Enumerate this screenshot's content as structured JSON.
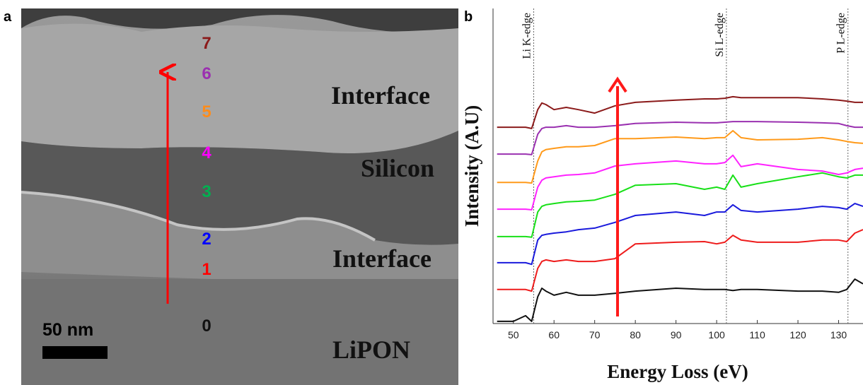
{
  "panel_a": {
    "letter": "a",
    "scale_bar": "50 nm",
    "layers": [
      {
        "label": "7",
        "color": "#8b1a1a"
      },
      {
        "label": "6",
        "color": "#9b30b0"
      },
      {
        "label": "5",
        "color": "#ff8c1a"
      },
      {
        "label": "4",
        "color": "#ff00ff"
      },
      {
        "label": "3",
        "color": "#00b050"
      },
      {
        "label": "2",
        "color": "#0000ff"
      },
      {
        "label": "1",
        "color": "#ff0000"
      },
      {
        "label": "0",
        "color": "#111111"
      }
    ],
    "regions": [
      "Interface",
      "Silicon",
      "Interface",
      "LiPON"
    ]
  },
  "chart_data": {
    "type": "line",
    "letter": "b",
    "x_label": "Energy Loss (eV)",
    "y_label": "Intensity (A.U)",
    "xlim": [
      45,
      136
    ],
    "xticks": [
      50,
      60,
      70,
      80,
      90,
      100,
      110,
      120,
      130
    ],
    "ylim": [
      0,
      100
    ],
    "edges": [
      {
        "label": "Li K-edge",
        "x": 55
      },
      {
        "label": "Si L-edge",
        "x": 102.4
      },
      {
        "label": "P L-edge",
        "x": 132.3
      }
    ],
    "x": [
      46,
      50,
      53,
      54.5,
      56,
      57,
      58,
      60,
      63,
      66,
      70,
      75,
      80,
      90,
      97,
      100,
      102,
      104,
      106,
      110,
      120,
      126,
      130,
      132,
      134,
      136
    ],
    "series": [
      {
        "color": "#111111",
        "values": [
          0.7,
          0.7,
          2.5,
          0.7,
          8.5,
          11.2,
          10.3,
          9.0,
          9.9,
          9.0,
          9.0,
          9.6,
          10.3,
          11.2,
          10.8,
          10.8,
          10.8,
          10.5,
          10.8,
          10.8,
          10.3,
          10.3,
          9.9,
          10.8,
          14.1,
          12.6
        ]
      },
      {
        "color": "#ee1c1c",
        "values": [
          10.8,
          10.8,
          10.8,
          10.3,
          17.5,
          19.7,
          20.2,
          19.7,
          20.2,
          19.7,
          19.7,
          20.6,
          25.3,
          25.8,
          26.0,
          25.3,
          25.8,
          28.0,
          26.5,
          25.8,
          25.8,
          26.5,
          26.5,
          26.0,
          28.7,
          29.8
        ]
      },
      {
        "color": "#1a1adc",
        "values": [
          19.3,
          19.3,
          19.3,
          18.8,
          26.5,
          28.0,
          28.3,
          28.7,
          29.1,
          29.8,
          30.3,
          32.1,
          34.3,
          35.4,
          34.3,
          35.4,
          35.4,
          37.7,
          35.9,
          35.4,
          36.3,
          37.2,
          36.8,
          36.3,
          38.1,
          37.2
        ]
      },
      {
        "color": "#18e018",
        "values": [
          27.6,
          27.6,
          27.6,
          27.4,
          35.4,
          37.2,
          37.7,
          38.1,
          38.6,
          38.8,
          39.2,
          41.0,
          43.9,
          44.4,
          42.6,
          43.3,
          42.6,
          47.1,
          43.3,
          44.4,
          46.6,
          47.8,
          46.6,
          46.2,
          47.1,
          47.1
        ]
      },
      {
        "color": "#ff22ff",
        "values": [
          36.3,
          36.3,
          36.3,
          36.1,
          43.3,
          45.5,
          46.2,
          46.6,
          47.1,
          47.3,
          47.8,
          50.0,
          50.7,
          51.6,
          50.7,
          50.7,
          51.1,
          53.4,
          49.8,
          50.7,
          48.9,
          48.4,
          47.3,
          47.8,
          48.9,
          49.3
        ]
      },
      {
        "color": "#ff9a1a",
        "values": [
          44.8,
          44.8,
          44.8,
          44.6,
          51.6,
          54.5,
          55.2,
          55.6,
          56.1,
          56.1,
          56.5,
          58.7,
          58.7,
          59.2,
          58.7,
          59.0,
          59.0,
          61.2,
          59.0,
          58.3,
          58.5,
          59.0,
          58.3,
          57.8,
          57.4,
          57.2
        ]
      },
      {
        "color": "#9a30b0",
        "values": [
          53.8,
          53.8,
          53.8,
          53.6,
          60.1,
          61.9,
          62.3,
          62.3,
          62.8,
          62.3,
          62.3,
          62.8,
          63.5,
          63.9,
          63.7,
          63.7,
          63.9,
          64.1,
          64.1,
          64.1,
          63.9,
          63.7,
          63.5,
          62.8,
          62.3,
          62.3
        ]
      },
      {
        "color": "#8b1a1a",
        "values": [
          62.3,
          62.3,
          62.3,
          61.9,
          67.9,
          70.0,
          69.5,
          67.9,
          68.6,
          67.9,
          66.8,
          69.1,
          70.2,
          70.9,
          71.3,
          71.3,
          71.5,
          72.0,
          71.7,
          71.7,
          71.7,
          71.3,
          70.9,
          70.6,
          70.2,
          70.2
        ]
      }
    ]
  }
}
